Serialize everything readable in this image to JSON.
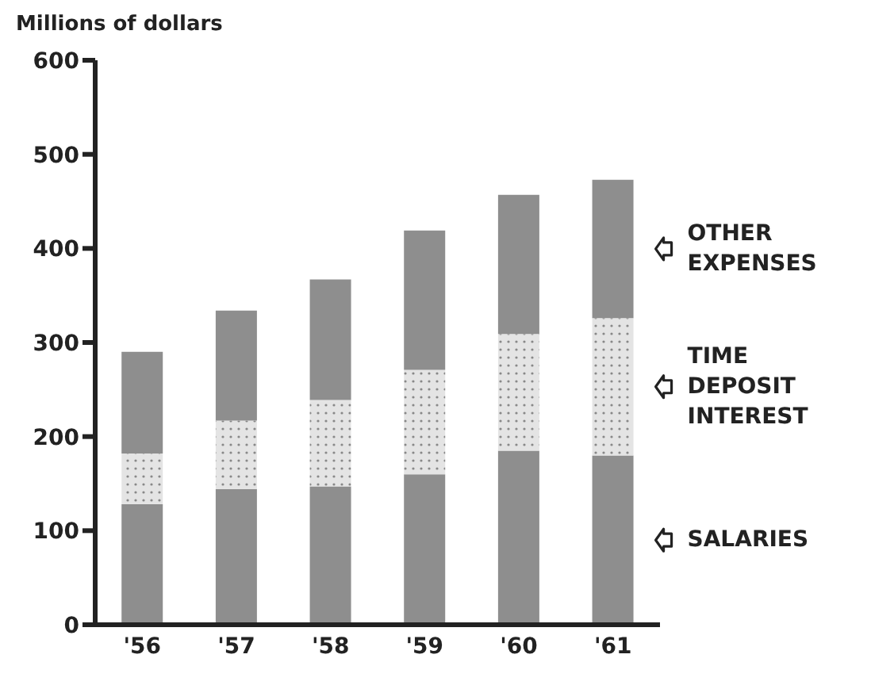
{
  "chart_data": {
    "type": "bar",
    "stacked": true,
    "ylabel": "Millions of dollars",
    "categories": [
      "'56",
      "'57",
      "'58",
      "'59",
      "'60",
      "'61"
    ],
    "series": [
      {
        "name": "SALARIES",
        "color": "#8e8e8e",
        "values": [
          128,
          144,
          147,
          160,
          185,
          180
        ]
      },
      {
        "name": "TIME DEPOSIT INTEREST",
        "color": "#e4e4e4",
        "values": [
          54,
          73,
          92,
          111,
          124,
          146
        ]
      },
      {
        "name": "OTHER EXPENSES",
        "color": "#8e8e8e",
        "values": [
          108,
          117,
          128,
          148,
          148,
          147
        ]
      }
    ],
    "ylim": [
      0,
      600
    ],
    "yticks": [
      0,
      100,
      200,
      300,
      400,
      500,
      600
    ],
    "grid": false
  }
}
